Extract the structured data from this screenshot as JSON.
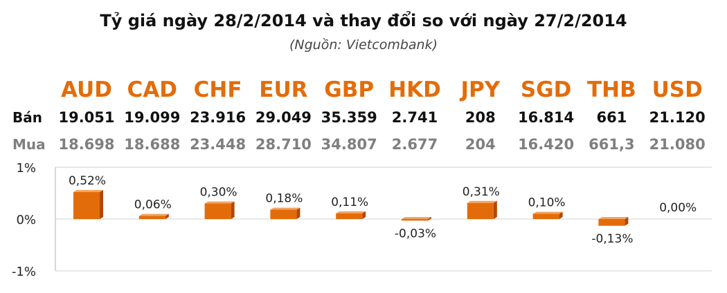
{
  "chart_data": {
    "type": "bar",
    "title": "Tỷ giá ngày 28/2/2014 và thay đổi so với ngày 27/2/2014",
    "subtitle": "(Nguồn: Vietcombank)",
    "categories": [
      "AUD",
      "CAD",
      "CHF",
      "EUR",
      "GBP",
      "HKD",
      "JPY",
      "SGD",
      "THB",
      "USD"
    ],
    "rows": [
      {
        "label": "Bán",
        "values": [
          "19.051",
          "19.099",
          "23.916",
          "29.049",
          "35.359",
          "2.741",
          "208",
          "16.814",
          "661",
          "21.120"
        ]
      },
      {
        "label": "Mua",
        "values": [
          "18.698",
          "18.688",
          "23.448",
          "28.710",
          "34.807",
          "2.677",
          "204",
          "16.420",
          "661,3",
          "21.080"
        ]
      }
    ],
    "values": [
      0.52,
      0.06,
      0.3,
      0.18,
      0.11,
      -0.03,
      0.31,
      0.1,
      -0.13,
      0.0
    ],
    "data_labels": [
      "0,52%",
      "0,06%",
      "0,30%",
      "0,18%",
      "0,11%",
      "-0,03%",
      "0,31%",
      "0,10%",
      "-0,13%",
      "0,00%"
    ],
    "yticks": [
      "1%",
      "0%",
      "-1%"
    ],
    "ylim": [
      -1,
      1
    ],
    "grid": true,
    "colors": {
      "currency": "#e36c0a",
      "bar": "#e36c0a",
      "bar_dark": "#b34700",
      "sell_row": "#111111",
      "buy_row": "#7f7f7f",
      "grid": "#d9d9d9"
    }
  }
}
